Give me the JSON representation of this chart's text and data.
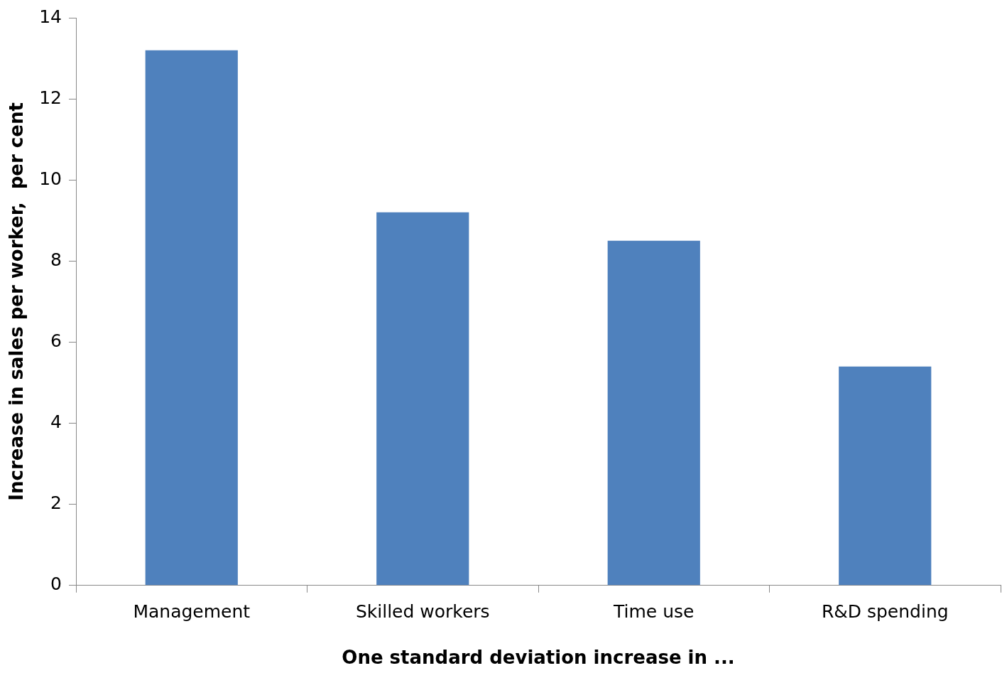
{
  "chart_data": {
    "type": "bar",
    "xlabel": "One standard deviation increase in ...",
    "ylabel": "Increase in sales per worker,  per cent",
    "categories": [
      "Management",
      "Skilled workers",
      "Time use",
      "R&D spending"
    ],
    "values": [
      13.2,
      9.2,
      8.5,
      5.4
    ],
    "color": "#4f81bd",
    "ylim": [
      0,
      14
    ],
    "yticks": [
      0,
      2,
      4,
      6,
      8,
      10,
      12,
      14
    ],
    "grid": false,
    "legend": false
  }
}
